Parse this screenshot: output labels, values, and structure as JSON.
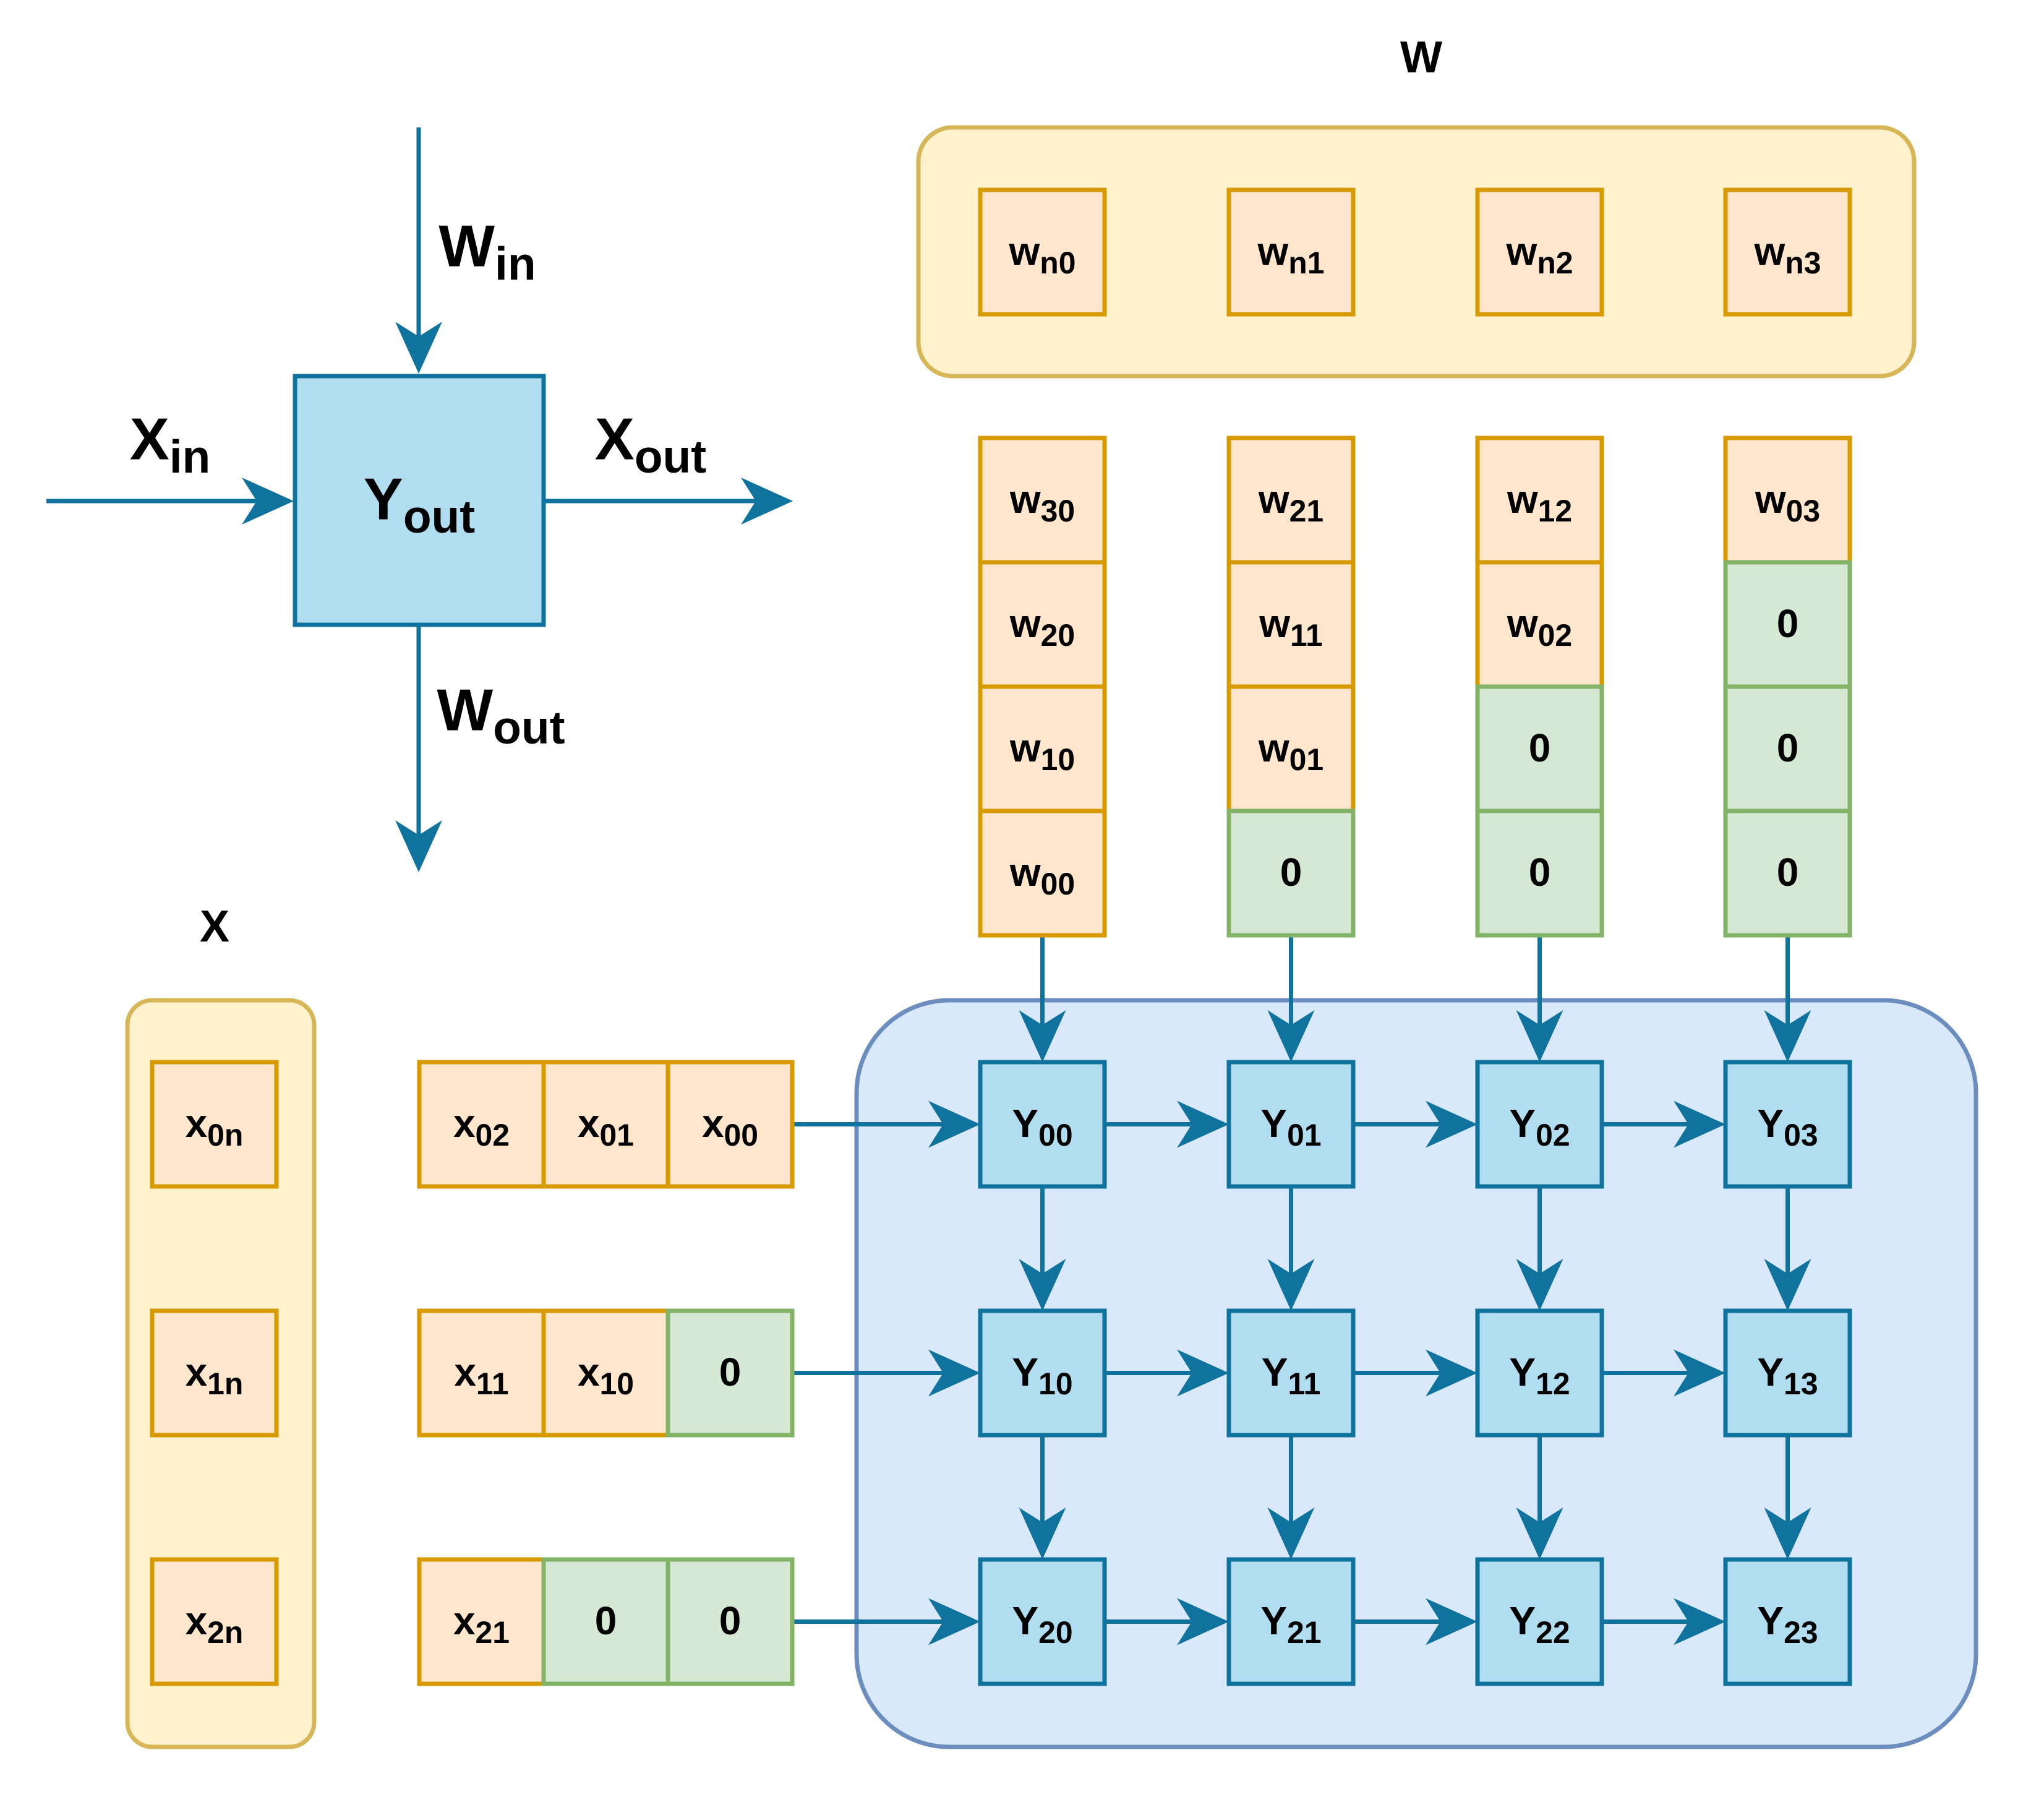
{
  "legend": {
    "pe_label": {
      "main": "Y",
      "sub": "out"
    },
    "w_in": {
      "main": "W",
      "sub": "in"
    },
    "x_in": {
      "main": "X",
      "sub": "in"
    },
    "x_out": {
      "main": "X",
      "sub": "out"
    },
    "w_out": {
      "main": "W",
      "sub": "out"
    }
  },
  "w_title": "W",
  "x_title": "X",
  "w_bank": [
    {
      "main": "w",
      "sub": "n0"
    },
    {
      "main": "w",
      "sub": "n1"
    },
    {
      "main": "w",
      "sub": "n2"
    },
    {
      "main": "w",
      "sub": "n3"
    }
  ],
  "x_bank": [
    {
      "main": "x",
      "sub": "0n"
    },
    {
      "main": "x",
      "sub": "1n"
    },
    {
      "main": "x",
      "sub": "2n"
    }
  ],
  "w_columns": [
    [
      {
        "main": "w",
        "sub": "30"
      },
      {
        "main": "w",
        "sub": "20"
      },
      {
        "main": "w",
        "sub": "10"
      },
      {
        "main": "w",
        "sub": "00"
      }
    ],
    [
      {
        "main": "w",
        "sub": "21"
      },
      {
        "main": "w",
        "sub": "11"
      },
      {
        "main": "w",
        "sub": "01"
      },
      {
        "main": "0",
        "sub": "",
        "zero": true
      }
    ],
    [
      {
        "main": "w",
        "sub": "12"
      },
      {
        "main": "w",
        "sub": "02"
      },
      {
        "main": "0",
        "sub": "",
        "zero": true
      },
      {
        "main": "0",
        "sub": "",
        "zero": true
      }
    ],
    [
      {
        "main": "w",
        "sub": "03"
      },
      {
        "main": "0",
        "sub": "",
        "zero": true
      },
      {
        "main": "0",
        "sub": "",
        "zero": true
      },
      {
        "main": "0",
        "sub": "",
        "zero": true
      }
    ]
  ],
  "x_rows": [
    [
      {
        "main": "x",
        "sub": "02"
      },
      {
        "main": "x",
        "sub": "01"
      },
      {
        "main": "x",
        "sub": "00"
      }
    ],
    [
      {
        "main": "x",
        "sub": "11"
      },
      {
        "main": "x",
        "sub": "10"
      },
      {
        "main": "0",
        "sub": "",
        "zero": true
      }
    ],
    [
      {
        "main": "x",
        "sub": "21"
      },
      {
        "main": "0",
        "sub": "",
        "zero": true
      },
      {
        "main": "0",
        "sub": "",
        "zero": true
      }
    ]
  ],
  "pe_grid": [
    [
      {
        "main": "Y",
        "sub": "00"
      },
      {
        "main": "Y",
        "sub": "01"
      },
      {
        "main": "Y",
        "sub": "02"
      },
      {
        "main": "Y",
        "sub": "03"
      }
    ],
    [
      {
        "main": "Y",
        "sub": "10"
      },
      {
        "main": "Y",
        "sub": "11"
      },
      {
        "main": "Y",
        "sub": "12"
      },
      {
        "main": "Y",
        "sub": "13"
      }
    ],
    [
      {
        "main": "Y",
        "sub": "20"
      },
      {
        "main": "Y",
        "sub": "21"
      },
      {
        "main": "Y",
        "sub": "22"
      },
      {
        "main": "Y",
        "sub": "23"
      }
    ]
  ],
  "colors": {
    "arrow": "#10739e",
    "pe_fill": "#b1ddf0",
    "pe_stroke": "#10739e",
    "weight_fill": "#ffe6cc",
    "weight_stroke": "#d79b00",
    "zero_fill": "#d5e8d4",
    "zero_stroke": "#82b366",
    "bank_fill": "#fff2cc",
    "bank_stroke": "#d6b656",
    "array_fill": "#dae8fc",
    "array_stroke": "#6c8ebf"
  }
}
